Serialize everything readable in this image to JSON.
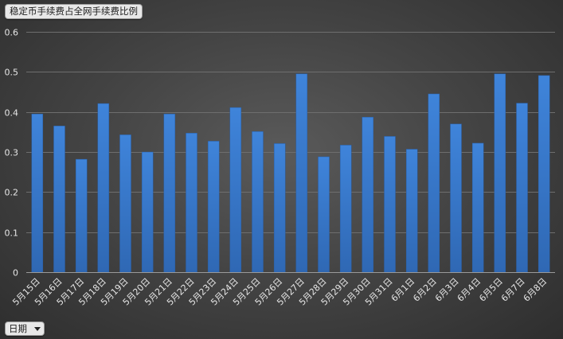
{
  "title": "稳定币手续费占全网手续费比例",
  "filter": {
    "label": "日期"
  },
  "chart_data": {
    "type": "bar",
    "title": "稳定币手续费占全网手续费比例",
    "xlabel": "",
    "ylabel": "",
    "ylim": [
      0,
      0.6
    ],
    "yticks": [
      "0",
      "0.1",
      "0.2",
      "0.3",
      "0.4",
      "0.5",
      "0.6"
    ],
    "grid": true,
    "legend": "none",
    "bar_color": "#3a7cd0",
    "categories": [
      "5月15日",
      "5月16日",
      "5月17日",
      "5月18日",
      "5月19日",
      "5月20日",
      "5月21日",
      "5月22日",
      "5月23日",
      "5月24日",
      "5月25日",
      "5月26日",
      "5月27日",
      "5月28日",
      "5月29日",
      "5月30日",
      "5月31日",
      "6月1日",
      "6月2日",
      "6月3日",
      "6月4日",
      "6月5日",
      "6月7日",
      "6月8日"
    ],
    "values": [
      0.395,
      0.365,
      0.282,
      0.421,
      0.343,
      0.3,
      0.395,
      0.347,
      0.327,
      0.411,
      0.351,
      0.321,
      0.495,
      0.288,
      0.317,
      0.387,
      0.339,
      0.307,
      0.445,
      0.37,
      0.322,
      0.495,
      0.422,
      0.491
    ]
  }
}
